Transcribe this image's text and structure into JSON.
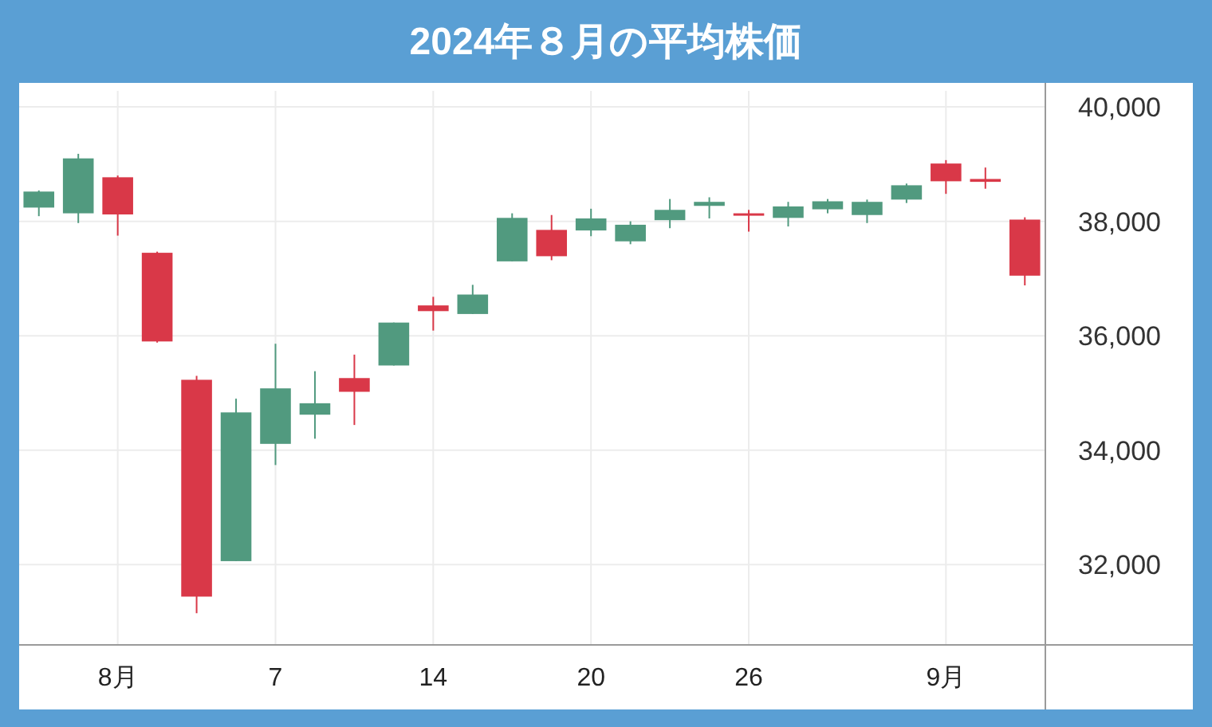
{
  "chart_data": {
    "type": "candlestick",
    "title": "2024年８月の平均株価",
    "categories": [
      null,
      null,
      "8月",
      null,
      null,
      null,
      "7",
      null,
      null,
      null,
      "14",
      null,
      null,
      null,
      "20",
      null,
      null,
      null,
      "26",
      null,
      null,
      null,
      null,
      "9月",
      null,
      null
    ],
    "ohlc": [
      [
        38240,
        38540,
        38090,
        38520
      ],
      [
        38140,
        39180,
        37970,
        39100
      ],
      [
        38770,
        38800,
        37750,
        38120
      ],
      [
        37450,
        37470,
        35880,
        35900
      ],
      [
        35230,
        35300,
        31150,
        31440
      ],
      [
        32060,
        34900,
        32060,
        34660
      ],
      [
        34110,
        35860,
        33740,
        35080
      ],
      [
        34620,
        35380,
        34200,
        34820
      ],
      [
        35260,
        35670,
        34440,
        35020
      ],
      [
        35480,
        36230,
        35480,
        36230
      ],
      [
        36530,
        36680,
        36090,
        36430
      ],
      [
        36380,
        36890,
        36380,
        36720
      ],
      [
        37300,
        38140,
        37300,
        38060
      ],
      [
        37850,
        38110,
        37320,
        37390
      ],
      [
        37840,
        38220,
        37740,
        38050
      ],
      [
        37650,
        38000,
        37600,
        37940
      ],
      [
        38020,
        38390,
        37880,
        38200
      ],
      [
        38270,
        38420,
        38050,
        38340
      ],
      [
        38140,
        38200,
        37820,
        38100
      ],
      [
        38060,
        38340,
        37910,
        38260
      ],
      [
        38210,
        38390,
        38140,
        38350
      ],
      [
        38110,
        38380,
        37970,
        38340
      ],
      [
        38380,
        38660,
        38320,
        38630
      ],
      [
        39010,
        39070,
        38480,
        38700
      ],
      [
        38740,
        38940,
        38570,
        38690
      ],
      [
        38030,
        38070,
        36880,
        37050
      ]
    ],
    "colors": [
      "#519a7f",
      "#519a7f",
      "#d93848",
      "#d93848",
      "#d93848",
      "#519a7f",
      "#519a7f",
      "#519a7f",
      "#d93848",
      "#519a7f",
      "#d93848",
      "#519a7f",
      "#519a7f",
      "#d93848",
      "#519a7f",
      "#519a7f",
      "#519a7f",
      "#519a7f",
      "#d93848",
      "#519a7f",
      "#519a7f",
      "#519a7f",
      "#519a7f",
      "#d93848",
      "#d93848",
      "#d93848"
    ],
    "ylim": [
      30610,
      40280
    ],
    "yticks": [
      {
        "value": 32000,
        "label": "32,000"
      },
      {
        "value": 34000,
        "label": "34,000"
      },
      {
        "value": 36000,
        "label": "36,000"
      },
      {
        "value": 38000,
        "label": "38,000"
      },
      {
        "value": 40000,
        "label": "40,000"
      }
    ],
    "grid": true
  }
}
